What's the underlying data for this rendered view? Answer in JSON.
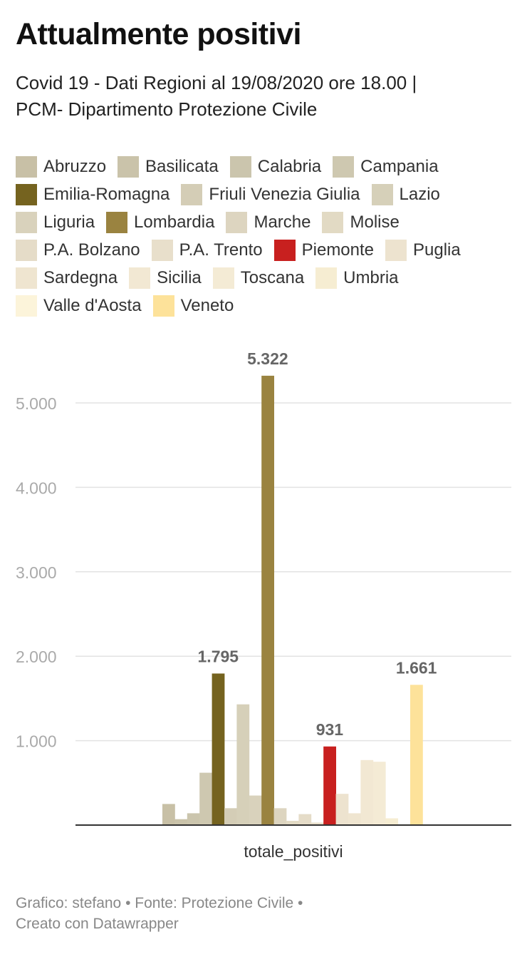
{
  "header": {
    "title": "Attualmente positivi",
    "subtitle_line1": "Covid 19 - Dati Regioni al 19/08/2020 ore 18.00 |",
    "subtitle_line2": "PCM- Dipartimento Protezione Civile"
  },
  "footer": {
    "line1": "Grafico: stefano • Fonte: Protezione Civile •",
    "line2": "Creato con Datawrapper"
  },
  "chart_data": {
    "type": "bar",
    "categories": [
      "totale_positivi"
    ],
    "xlabel": "",
    "ylabel": "",
    "ylim": [
      0,
      5500
    ],
    "yticks": [
      1000,
      2000,
      3000,
      4000,
      5000
    ],
    "ytick_labels": [
      "1.000",
      "2.000",
      "3.000",
      "4.000",
      "5.000"
    ],
    "grid": true,
    "legend_position": "top",
    "series": [
      {
        "name": "Abruzzo",
        "values": [
          250
        ],
        "color": "#c8c0a6"
      },
      {
        "name": "Basilicata",
        "values": [
          70
        ],
        "color": "#cac3aa"
      },
      {
        "name": "Calabria",
        "values": [
          140
        ],
        "color": "#cbc5ad"
      },
      {
        "name": "Campania",
        "values": [
          620
        ],
        "color": "#cec8b0"
      },
      {
        "name": "Emilia-Romagna",
        "values": [
          1795
        ],
        "color": "#75631f",
        "label": "1.795"
      },
      {
        "name": "Friuli Venezia Giulia",
        "values": [
          200
        ],
        "color": "#d4cdb6"
      },
      {
        "name": "Lazio",
        "values": [
          1430
        ],
        "color": "#d6d0b9"
      },
      {
        "name": "Liguria",
        "values": [
          350
        ],
        "color": "#d9d2bc"
      },
      {
        "name": "Lombardia",
        "values": [
          5322
        ],
        "color": "#9a8340",
        "label": "5.322"
      },
      {
        "name": "Marche",
        "values": [
          200
        ],
        "color": "#ddd5c0"
      },
      {
        "name": "Molise",
        "values": [
          50
        ],
        "color": "#e2dac4"
      },
      {
        "name": "P.A. Bolzano",
        "values": [
          130
        ],
        "color": "#e5dcc8"
      },
      {
        "name": "P.A. Trento",
        "values": [
          30
        ],
        "color": "#e8dfcb"
      },
      {
        "name": "Piemonte",
        "values": [
          931
        ],
        "color": "#c8201f",
        "label": "931"
      },
      {
        "name": "Puglia",
        "values": [
          370
        ],
        "color": "#ede3cf"
      },
      {
        "name": "Sardegna",
        "values": [
          140
        ],
        "color": "#efe5d0"
      },
      {
        "name": "Sicilia",
        "values": [
          770
        ],
        "color": "#f2e8d3"
      },
      {
        "name": "Toscana",
        "values": [
          750
        ],
        "color": "#f4ebd5"
      },
      {
        "name": "Umbria",
        "values": [
          80
        ],
        "color": "#f6edd2"
      },
      {
        "name": "Valle d'Aosta",
        "values": [
          10
        ],
        "color": "#fcf4da"
      },
      {
        "name": "Veneto",
        "values": [
          1661
        ],
        "color": "#fde29a",
        "label": "1.661"
      }
    ]
  }
}
